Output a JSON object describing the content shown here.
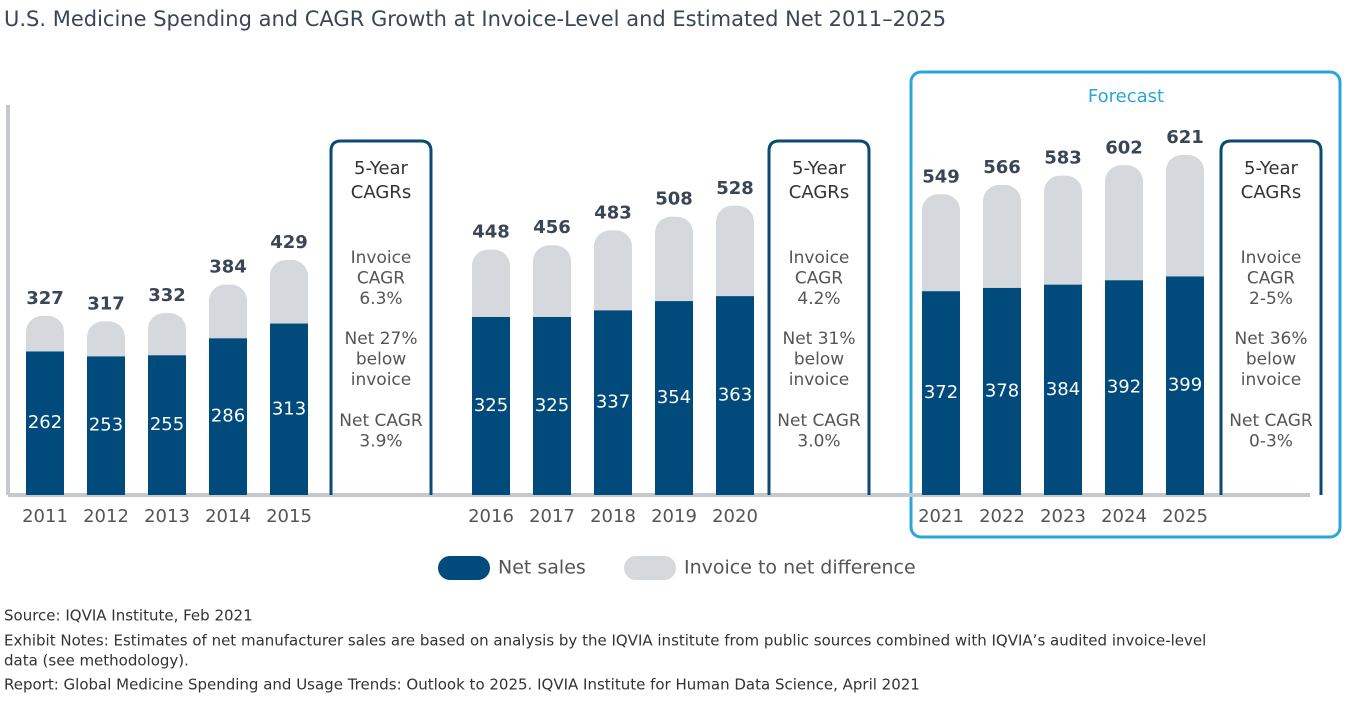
{
  "chart_data": {
    "type": "bar",
    "title": "U.S. Medicine Spending and CAGR Growth at Invoice-Level and Estimated Net 2011–2025",
    "categories": [
      "2011",
      "2012",
      "2013",
      "2014",
      "2015",
      "2016",
      "2017",
      "2018",
      "2019",
      "2020",
      "2021",
      "2022",
      "2023",
      "2024",
      "2025"
    ],
    "series": [
      {
        "name": "Net sales",
        "color": "#004a7c",
        "values": [
          262,
          253,
          255,
          286,
          313,
          325,
          325,
          337,
          354,
          363,
          372,
          378,
          384,
          392,
          399
        ]
      },
      {
        "name": "Invoice to net difference",
        "color": "#d5d8dc",
        "values": [
          327,
          317,
          332,
          384,
          429,
          448,
          456,
          483,
          508,
          528,
          549,
          566,
          583,
          602,
          621
        ]
      }
    ],
    "ylim": [
      0,
      712
    ],
    "forecast_label": "Forecast",
    "cagr_boxes": [
      {
        "title": [
          "5-Year",
          "CAGRs"
        ],
        "lines": [
          [
            "Invoice",
            "CAGR",
            "6.3%"
          ],
          [
            "Net 27%",
            "below",
            "invoice"
          ],
          [
            "Net CAGR",
            "3.9%"
          ]
        ]
      },
      {
        "title": [
          "5-Year",
          "CAGRs"
        ],
        "lines": [
          [
            "Invoice",
            "CAGR",
            "4.2%"
          ],
          [
            "Net 31%",
            "below",
            "invoice"
          ],
          [
            "Net CAGR",
            "3.0%"
          ]
        ]
      },
      {
        "title": [
          "5-Year",
          "CAGRs"
        ],
        "lines": [
          [
            "Invoice",
            "CAGR",
            "2-5%"
          ],
          [
            "Net 36%",
            "below",
            "invoice"
          ],
          [
            "Net CAGR",
            "0-3%"
          ]
        ]
      }
    ]
  },
  "notes": [
    "Source: IQVIA Institute, Feb 2021",
    "Exhibit Notes: Estimates of net manufacturer sales are based on analysis by the IQVIA institute from public sources combined with IQVIA’s audited invoice-level",
    "data (see methodology).",
    "Report: Global Medicine Spending and Usage Trends: Outlook to 2025. IQVIA Institute for Human Data Science, April 2021"
  ]
}
